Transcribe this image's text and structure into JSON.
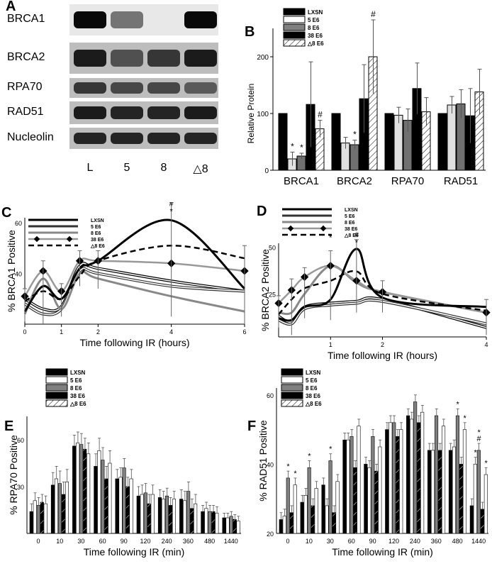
{
  "figure": {
    "panels": {
      "A": {
        "label": "A",
        "rows": [
          "BRCA1",
          "BRCA2",
          "RPA70",
          "RAD51",
          "Nucleolin"
        ],
        "lanes": [
          "L",
          "5",
          "8",
          "△8"
        ],
        "band_intensity": [
          [
            0.95,
            0.35,
            0.0,
            0.95
          ],
          [
            0.85,
            0.55,
            0.7,
            0.85
          ],
          [
            0.7,
            0.6,
            0.6,
            0.5
          ],
          [
            0.85,
            0.8,
            0.8,
            0.85
          ],
          [
            0.8,
            0.8,
            0.8,
            0.8
          ]
        ]
      },
      "B": {
        "label": "B"
      },
      "C": {
        "label": "C"
      },
      "D": {
        "label": "D"
      },
      "E": {
        "label": "E"
      },
      "F": {
        "label": "F"
      }
    },
    "legend_ABCD": [
      "LXSN",
      "5 E6",
      "8 E6",
      "38 E6",
      "△8 E6"
    ],
    "legend_EF": [
      "LXSN",
      "5 E6",
      "8 E6",
      "38 E6",
      "△8 E6"
    ]
  },
  "chart_data": [
    {
      "panel": "B",
      "type": "bar",
      "ylabel": "Relative Protein",
      "ylim": [
        0,
        250
      ],
      "yticks": [
        0,
        100,
        200
      ],
      "categories": [
        "BRCA1",
        "BRCA2",
        "RPA70",
        "RAD51"
      ],
      "series": [
        {
          "name": "LXSN",
          "values": [
            100,
            100,
            100,
            100
          ],
          "errors": [
            0,
            0,
            0,
            0
          ],
          "color": "#000000"
        },
        {
          "name": "5 E6",
          "values": [
            20,
            48,
            97,
            115
          ],
          "errors": [
            12,
            10,
            14,
            15
          ],
          "color": "#e0e0e0"
        },
        {
          "name": "8 E6",
          "values": [
            25,
            45,
            88,
            117
          ],
          "errors": [
            5,
            8,
            20,
            25
          ],
          "color": "#707070"
        },
        {
          "name": "38 E6",
          "values": [
            116,
            126,
            144,
            96
          ],
          "errors": [
            75,
            60,
            45,
            48
          ],
          "color": "#000000"
        },
        {
          "name": "△8 E6",
          "values": [
            73,
            200,
            103,
            138
          ],
          "errors": [
            15,
            65,
            25,
            40
          ],
          "color": "#ffffff"
        }
      ],
      "annotations": [
        {
          "category": "BRCA1",
          "series": "5 E6",
          "text": "*"
        },
        {
          "category": "BRCA1",
          "series": "8 E6",
          "text": "*"
        },
        {
          "category": "BRCA1",
          "series": "△8 E6",
          "text": "#"
        },
        {
          "category": "BRCA2",
          "series": "8 E6",
          "text": "*"
        },
        {
          "category": "BRCA2",
          "series": "△8 E6",
          "text": "#"
        }
      ]
    },
    {
      "panel": "C",
      "type": "line",
      "xlabel": "Time following IR (hours)",
      "ylabel": "% BRCA1 Positive",
      "xlim": [
        0,
        6
      ],
      "ylim": [
        20,
        62
      ],
      "xticks": [
        0,
        1,
        2,
        4,
        6
      ],
      "yticks": [
        40,
        60
      ],
      "x": [
        0,
        0.5,
        1,
        1.5,
        2,
        4,
        6
      ],
      "series": [
        {
          "name": "LXSN",
          "values": [
            30,
            26,
            27,
            43,
            42,
            37,
            33
          ]
        },
        {
          "name": "5 E6",
          "values": [
            28,
            24,
            26,
            41,
            40,
            35,
            33
          ]
        },
        {
          "name": "8 E6",
          "values": [
            24,
            38,
            26,
            40,
            38,
            31,
            25
          ]
        },
        {
          "name": "38 E6",
          "values": [
            31,
            41,
            33,
            45,
            45,
            44,
            41
          ]
        },
        {
          "name": "△8 E6",
          "values": [
            29,
            33,
            30,
            39,
            45,
            51,
            46
          ]
        },
        {
          "name": "",
          "values": [
            25,
            35,
            30,
            42,
            45,
            61,
            34
          ]
        }
      ],
      "errors": [
        3,
        4,
        3,
        4,
        4,
        8,
        5
      ],
      "annotations": [
        {
          "x": 4,
          "text": "#"
        },
        {
          "x": 4,
          "text": "*"
        }
      ]
    },
    {
      "panel": "D",
      "type": "line",
      "xlabel": "Time following IR (hours)",
      "ylabel": "% BRCA2 Positive",
      "xlim": [
        0,
        4
      ],
      "ylim": [
        2,
        52
      ],
      "xticks": [
        1,
        2,
        4
      ],
      "yticks": [
        25,
        50
      ],
      "x": [
        0,
        0.25,
        0.5,
        1,
        1.5,
        2,
        4
      ],
      "series": [
        {
          "name": "LXSN",
          "values": [
            13,
            10,
            18,
            20,
            21,
            22,
            7
          ]
        },
        {
          "name": "5 E6",
          "values": [
            11,
            9,
            17,
            19,
            20,
            21,
            9
          ]
        },
        {
          "name": "8 E6",
          "values": [
            15,
            15,
            25,
            40,
            31,
            26,
            15
          ]
        },
        {
          "name": "38 E6",
          "values": [
            20,
            27,
            34,
            40,
            32,
            26,
            15
          ]
        },
        {
          "name": "△8 E6",
          "values": [
            14,
            22,
            28,
            32,
            37,
            25,
            16
          ]
        },
        {
          "name": "",
          "values": [
            12,
            11,
            18,
            22,
            49,
            23,
            18
          ]
        }
      ],
      "errors": [
        4,
        6,
        5,
        8,
        5,
        6,
        4
      ],
      "annotations": [
        {
          "x": 1,
          "text": "*"
        },
        {
          "x": 1.5,
          "text": "#"
        },
        {
          "x": 1.5,
          "text": "*"
        }
      ]
    },
    {
      "panel": "E",
      "type": "bar",
      "xlabel": "Time following IR (min)",
      "ylabel": "% RPA70 Positive",
      "ylim": [
        0,
        75
      ],
      "yticks": [
        30,
        60
      ],
      "categories": [
        "0",
        "10",
        "30",
        "60",
        "90",
        "120",
        "240",
        "360",
        "480",
        "1440"
      ],
      "series": [
        {
          "name": "LXSN",
          "values": [
            14,
            31,
            56,
            43,
            35,
            24,
            23,
            22,
            14,
            10
          ],
          "color": "#000000"
        },
        {
          "name": "5 E6",
          "values": [
            21,
            35,
            58,
            53,
            36,
            25,
            22,
            21,
            16,
            10
          ],
          "color": "#ffffff"
        },
        {
          "name": "8 E6",
          "values": [
            18,
            32,
            57,
            47,
            42,
            26,
            24,
            27,
            14,
            11
          ],
          "color": "#808080"
        },
        {
          "name": "38 E6",
          "values": [
            20,
            25,
            54,
            35,
            30,
            19,
            18,
            16,
            14,
            9
          ],
          "color": "#000000"
        },
        {
          "name": "△8 E6",
          "values": [
            19,
            33,
            51,
            45,
            35,
            25,
            22,
            19,
            13,
            8
          ],
          "color": "#ffffff"
        }
      ],
      "errors": [
        5,
        8,
        7,
        8,
        6,
        6,
        5,
        6,
        4,
        3
      ]
    },
    {
      "panel": "F",
      "type": "bar",
      "xlabel": "Time following IR (min)",
      "ylabel": "% RAD51 Positive",
      "ylim": [
        20,
        62
      ],
      "yticks": [
        20,
        40,
        60
      ],
      "categories": [
        "0",
        "10",
        "30",
        "60",
        "90",
        "120",
        "240",
        "360",
        "480",
        "1440"
      ],
      "series": [
        {
          "name": "LXSN",
          "values": [
            24,
            29,
            34,
            47,
            40,
            50,
            54,
            44,
            44,
            28
          ],
          "color": "#000000"
        },
        {
          "name": "5 E6",
          "values": [
            25,
            31,
            28,
            47,
            39,
            52,
            53,
            44,
            45,
            40
          ],
          "color": "#ffffff"
        },
        {
          "name": "8 E6",
          "values": [
            36,
            39,
            41,
            48,
            48,
            52,
            58,
            54,
            54,
            44
          ],
          "color": "#808080"
        },
        {
          "name": "38 E6",
          "values": [
            26,
            28,
            26,
            39,
            38,
            48,
            52,
            44,
            40,
            27
          ],
          "color": "#000000"
        },
        {
          "name": "△8 E6",
          "values": [
            34,
            33,
            35,
            51,
            45,
            50,
            55,
            51,
            50,
            37
          ],
          "color": "#ffffff"
        }
      ],
      "errors": [
        2,
        2,
        2,
        2,
        2,
        2,
        2,
        2,
        2,
        2
      ],
      "annotations": [
        {
          "category": "0",
          "series": "8 E6",
          "text": "*"
        },
        {
          "category": "0",
          "series": "△8 E6",
          "text": "*"
        },
        {
          "category": "10",
          "series": "8 E6",
          "text": "*"
        },
        {
          "category": "30",
          "series": "8 E6",
          "text": "*"
        },
        {
          "category": "480",
          "series": "8 E6",
          "text": "*"
        },
        {
          "category": "480",
          "series": "△8 E6",
          "text": "*"
        },
        {
          "category": "1440",
          "series": "5 E6",
          "text": "*"
        },
        {
          "category": "1440",
          "series": "8 E6",
          "text": "#"
        },
        {
          "category": "1440",
          "series": "8 E6",
          "text": "*"
        },
        {
          "category": "1440",
          "series": "△8 E6",
          "text": "*"
        }
      ]
    }
  ]
}
